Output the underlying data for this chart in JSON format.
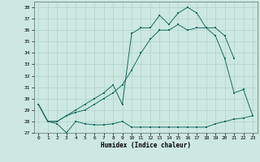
{
  "title": "",
  "xlabel": "Humidex (Indice chaleur)",
  "bg_color": "#cce8e0",
  "grid_color": "#b0d4cc",
  "line_color": "#1a6b60",
  "xlim": [
    -0.5,
    23.5
  ],
  "ylim": [
    27,
    38.5
  ],
  "yticks": [
    27,
    28,
    29,
    30,
    31,
    32,
    33,
    34,
    35,
    36,
    37,
    38
  ],
  "xticks": [
    0,
    1,
    2,
    3,
    4,
    5,
    6,
    7,
    8,
    9,
    10,
    11,
    12,
    13,
    14,
    15,
    16,
    17,
    18,
    19,
    20,
    21,
    22,
    23
  ],
  "series1_x": [
    0,
    1,
    2,
    3,
    4,
    5,
    6,
    7,
    8,
    9,
    10,
    11,
    12,
    13,
    14,
    15,
    16,
    17,
    18,
    19,
    20,
    21,
    22,
    23
  ],
  "series1_y": [
    29.5,
    28.0,
    27.8,
    27.0,
    28.0,
    27.8,
    27.7,
    27.7,
    27.8,
    28.0,
    27.5,
    27.5,
    27.5,
    27.5,
    27.5,
    27.5,
    27.5,
    27.5,
    27.5,
    27.8,
    28.0,
    28.2,
    28.3,
    28.5
  ],
  "series2_x": [
    0,
    1,
    2,
    3,
    4,
    5,
    6,
    7,
    8,
    9,
    10,
    11,
    12,
    13,
    14,
    15,
    16,
    17,
    18,
    19,
    20,
    21
  ],
  "series2_y": [
    29.5,
    28.0,
    28.0,
    28.5,
    29.0,
    29.5,
    30.0,
    30.5,
    31.2,
    29.5,
    35.7,
    36.2,
    36.2,
    37.3,
    36.5,
    37.5,
    38.0,
    37.5,
    36.2,
    36.2,
    35.5,
    33.5
  ],
  "series3_x": [
    0,
    1,
    2,
    3,
    4,
    5,
    6,
    7,
    8,
    9,
    10,
    11,
    12,
    13,
    14,
    15,
    16,
    17,
    18,
    19,
    20,
    21,
    22,
    23
  ],
  "series3_y": [
    29.5,
    28.0,
    28.0,
    28.5,
    28.8,
    29.0,
    29.5,
    30.0,
    30.5,
    31.2,
    32.5,
    34.0,
    35.2,
    36.0,
    36.0,
    36.5,
    36.0,
    36.2,
    36.2,
    35.5,
    33.5,
    30.5,
    30.8,
    28.5
  ]
}
